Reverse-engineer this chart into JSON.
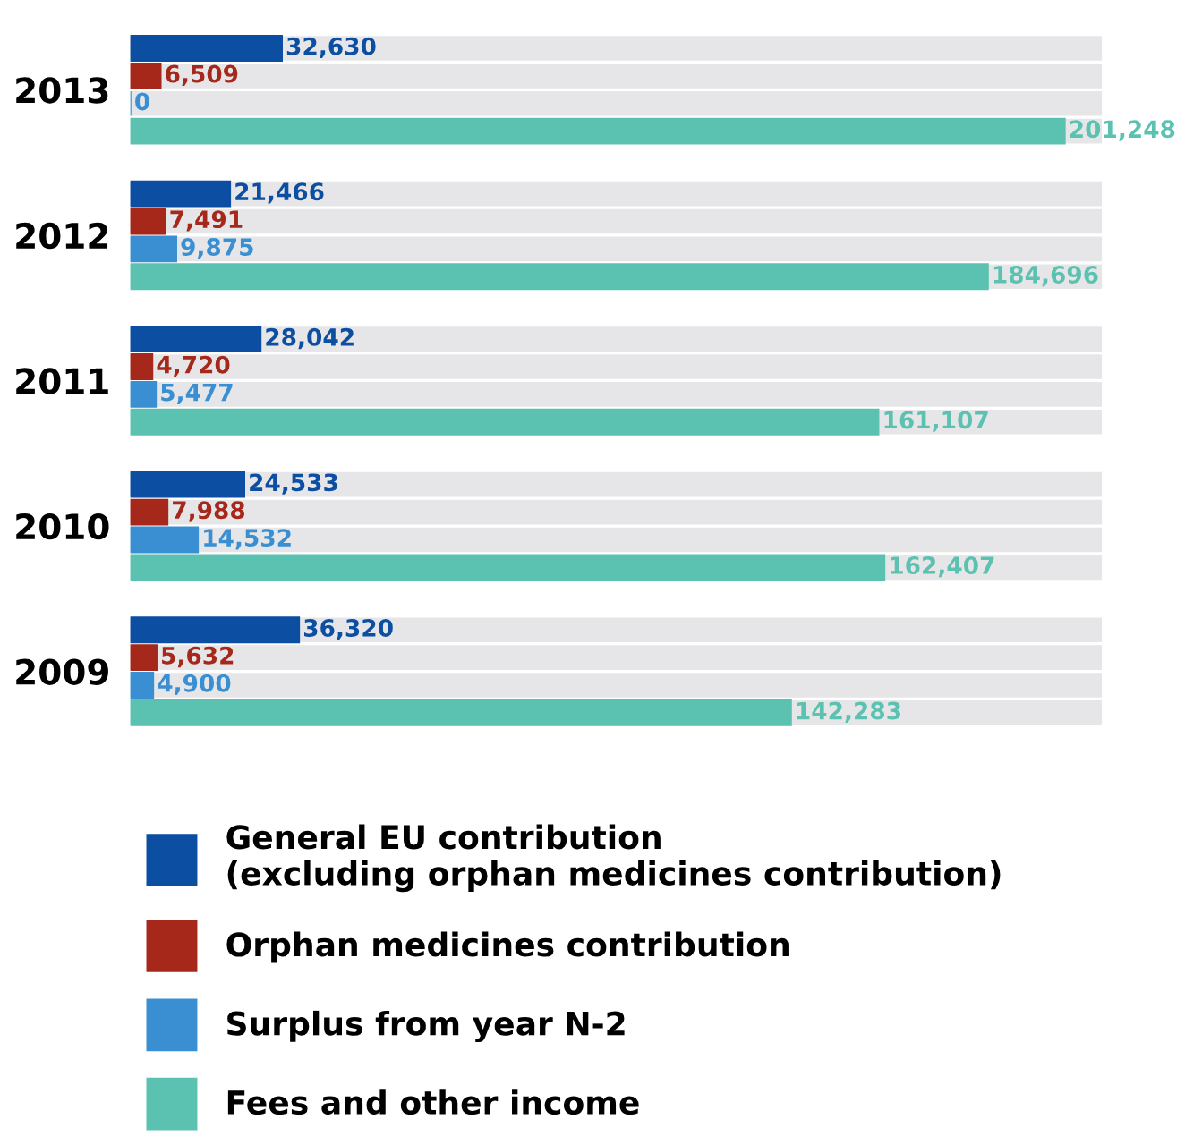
{
  "chart_data": {
    "type": "bar",
    "orientation": "horizontal",
    "categories": [
      "2013",
      "2012",
      "2011",
      "2010",
      "2009"
    ],
    "series": [
      {
        "name": "General EU contribution\n(excluding orphan medicines contribution)",
        "color": "#0b4ea2",
        "values": [
          32630,
          21466,
          28042,
          24533,
          36320
        ],
        "value_labels": [
          "32,630",
          "21,466",
          "28,042",
          "24,533",
          "36,320"
        ]
      },
      {
        "name": "Orphan medicines contribution",
        "color": "#a5281b",
        "values": [
          6509,
          7491,
          4720,
          7988,
          5632
        ],
        "value_labels": [
          "6,509",
          "7,491",
          "4,720",
          "7,988",
          "5,632"
        ]
      },
      {
        "name": "Surplus from year N-2",
        "color": "#3a8fd3",
        "values": [
          0,
          9875,
          5477,
          14532,
          4900
        ],
        "value_labels": [
          "0",
          "9,875",
          "5,477",
          "14,532",
          "4,900"
        ]
      },
      {
        "name": "Fees and other income",
        "color": "#5bc2b1",
        "values": [
          201248,
          184696,
          161107,
          162407,
          142283
        ],
        "value_labels": [
          "201,248",
          "184,696",
          "161,107",
          "162,407",
          "142,283"
        ]
      }
    ],
    "legend": "bottom",
    "grid": false
  }
}
